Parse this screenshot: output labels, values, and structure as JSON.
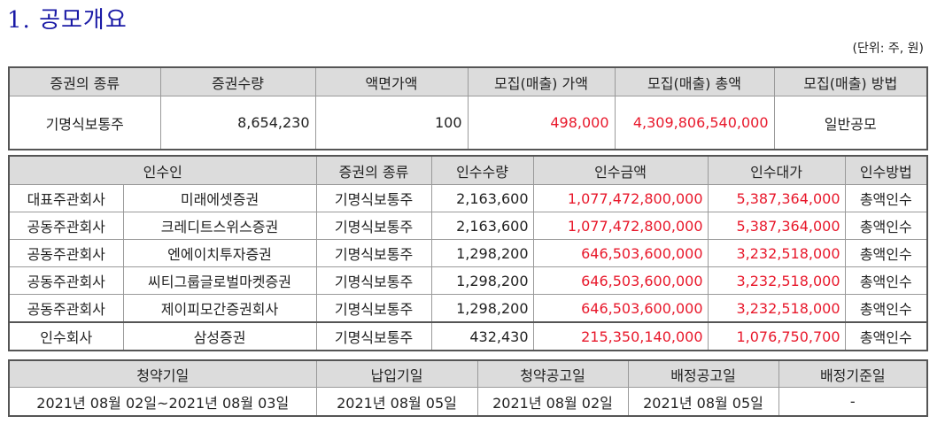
{
  "title": "1. 공모개요",
  "unit_note": "(단위: 주, 원)",
  "offering": {
    "headers": [
      "증권의 종류",
      "증권수량",
      "액면가액",
      "모집(매출) 가액",
      "모집(매출) 총액",
      "모집(매출) 방법"
    ],
    "row": {
      "security_type": "기명식보통주",
      "quantity": "8,654,230",
      "par_value": "100",
      "offer_price": "498,000",
      "total_amount": "4,309,806,540,000",
      "method": "일반공모"
    }
  },
  "underwriters": {
    "headers": [
      "인수인",
      "증권의 종류",
      "인수수량",
      "인수금액",
      "인수대가",
      "인수방법"
    ],
    "rows": [
      {
        "role": "대표주관회사",
        "name": "미래에셋증권",
        "type": "기명식보통주",
        "qty": "2,163,600",
        "amount": "1,077,472,800,000",
        "fee": "5,387,364,000",
        "method": "총액인수"
      },
      {
        "role": "공동주관회사",
        "name": "크레디트스위스증권",
        "type": "기명식보통주",
        "qty": "2,163,600",
        "amount": "1,077,472,800,000",
        "fee": "5,387,364,000",
        "method": "총액인수"
      },
      {
        "role": "공동주관회사",
        "name": "엔에이치투자증권",
        "type": "기명식보통주",
        "qty": "1,298,200",
        "amount": "646,503,600,000",
        "fee": "3,232,518,000",
        "method": "총액인수"
      },
      {
        "role": "공동주관회사",
        "name": "씨티그룹글로벌마켓증권",
        "type": "기명식보통주",
        "qty": "1,298,200",
        "amount": "646,503,600,000",
        "fee": "3,232,518,000",
        "method": "총액인수"
      },
      {
        "role": "공동주관회사",
        "name": "제이피모간증권회사",
        "type": "기명식보통주",
        "qty": "1,298,200",
        "amount": "646,503,600,000",
        "fee": "3,232,518,000",
        "method": "총액인수"
      },
      {
        "role": "인수회사",
        "name": "삼성증권",
        "type": "기명식보통주",
        "qty": "432,430",
        "amount": "215,350,140,000",
        "fee": "1,076,750,700",
        "method": "총액인수"
      }
    ]
  },
  "schedule": {
    "headers": [
      "청약기일",
      "납입기일",
      "청약공고일",
      "배정공고일",
      "배정기준일"
    ],
    "row": [
      "2021년 08월 02일~2021년 08월 03일",
      "2021년 08월 05일",
      "2021년 08월 02일",
      "2021년 08월 05일",
      "-"
    ]
  },
  "colors": {
    "title": "#1a1aa6",
    "header_bg": "#dcdcdc",
    "amount_red": "#e8182b"
  }
}
